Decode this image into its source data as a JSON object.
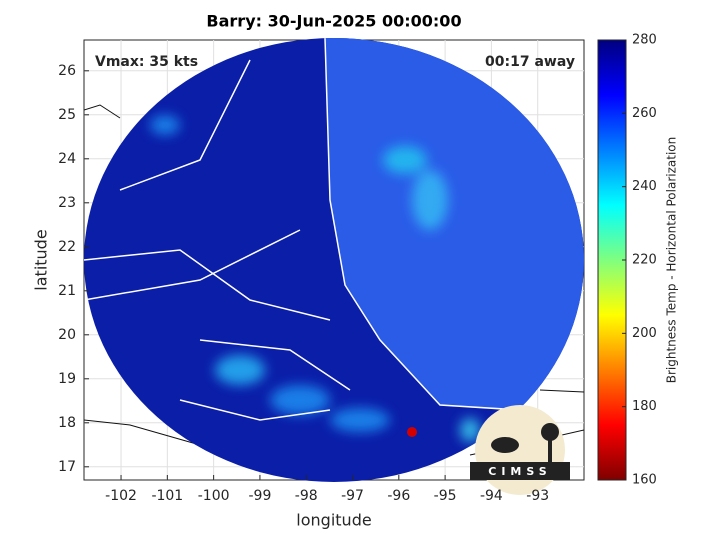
{
  "chart_data": {
    "type": "map",
    "title": "Barry: 30-Jun-2025 00:00:00",
    "annotations": [
      "Vmax: 35 kts",
      "00:17 away"
    ],
    "logo": "CIMSS",
    "xlabel": "longitude",
    "ylabel": "latitude",
    "xlim": [
      -102.8,
      -92.0
    ],
    "xticks": [
      -102,
      -101,
      -100,
      -99,
      -98,
      -97,
      -96,
      -95,
      -94,
      -93
    ],
    "ylim": [
      16.7,
      26.7
    ],
    "yticks": [
      17,
      18,
      19,
      20,
      21,
      22,
      23,
      24,
      25,
      26
    ],
    "grid": true,
    "colorbar": {
      "label": "Brightness Temp - Horizontal Polarization",
      "lim": [
        160,
        280
      ],
      "ticks": [
        160,
        180,
        200,
        220,
        240,
        260,
        280
      ]
    }
  }
}
